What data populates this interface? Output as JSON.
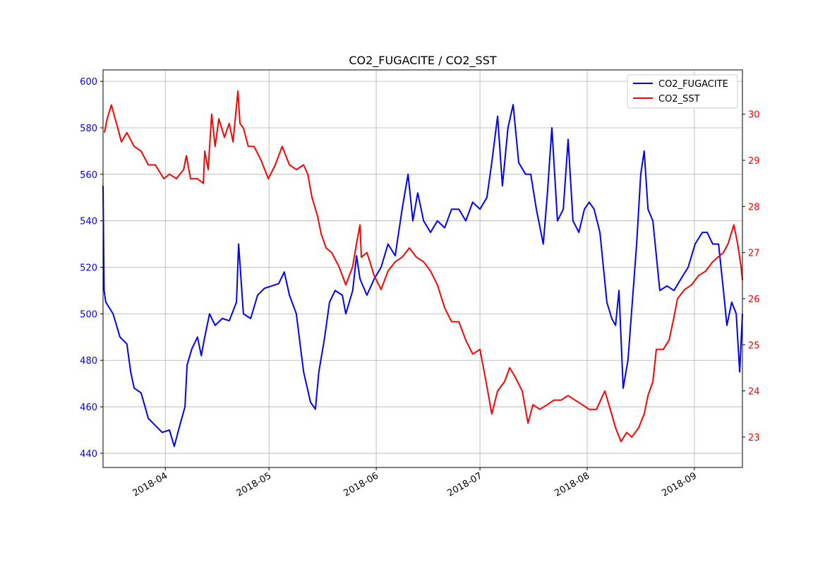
{
  "chart_data": {
    "type": "line",
    "title": "CO2_FUGACITE / CO2_SST",
    "x_origin": "2018-03-14",
    "x_unit": "days since x_origin",
    "xlim_days": [
      0,
      184.9
    ],
    "x_ticks": [
      {
        "label": "2018-04",
        "day": 18
      },
      {
        "label": "2018-05",
        "day": 48
      },
      {
        "label": "2018-06",
        "day": 79
      },
      {
        "label": "2018-07",
        "day": 109
      },
      {
        "label": "2018-08",
        "day": 140
      },
      {
        "label": "2018-09",
        "day": 171
      }
    ],
    "left_axis": {
      "ylim": [
        433.9,
        604.9
      ],
      "ticks": [
        "440",
        "460",
        "480",
        "500",
        "520",
        "540",
        "560",
        "580",
        "600"
      ],
      "color": "#0000ff"
    },
    "right_axis": {
      "ylim": [
        22.34,
        30.96
      ],
      "ticks": [
        "23",
        "24",
        "25",
        "26",
        "27",
        "28",
        "29",
        "30"
      ],
      "color": "#ff0000"
    },
    "grid": true,
    "legend_position": "top-right",
    "series": [
      {
        "name": "CO2_FUGACITE",
        "axis": "left",
        "color": "#0000ff",
        "points": [
          [
            0,
            555
          ],
          [
            0.3,
            510
          ],
          [
            0.8,
            505
          ],
          [
            2.9,
            500
          ],
          [
            4.9,
            490
          ],
          [
            6.9,
            487
          ],
          [
            8.0,
            475
          ],
          [
            9.0,
            468
          ],
          [
            11.0,
            466
          ],
          [
            13.1,
            455
          ],
          [
            15.1,
            452
          ],
          [
            17.1,
            449
          ],
          [
            19.2,
            450
          ],
          [
            20.6,
            443
          ],
          [
            22.2,
            452
          ],
          [
            23.7,
            460
          ],
          [
            24.3,
            478
          ],
          [
            25.7,
            485
          ],
          [
            27.3,
            490
          ],
          [
            28.4,
            482
          ],
          [
            29.4,
            490
          ],
          [
            30.8,
            500
          ],
          [
            32.4,
            495
          ],
          [
            34.5,
            498
          ],
          [
            36.5,
            497
          ],
          [
            38.6,
            505
          ],
          [
            39.2,
            530
          ],
          [
            40.6,
            500
          ],
          [
            42.7,
            498
          ],
          [
            44.7,
            508
          ],
          [
            46.7,
            511
          ],
          [
            48.8,
            512
          ],
          [
            50.8,
            513
          ],
          [
            52.4,
            518
          ],
          [
            53.9,
            508
          ],
          [
            55.9,
            500
          ],
          [
            56.9,
            488
          ],
          [
            58.0,
            475
          ],
          [
            60.0,
            462
          ],
          [
            61.4,
            459
          ],
          [
            62.4,
            475
          ],
          [
            64.1,
            490
          ],
          [
            65.5,
            505
          ],
          [
            67.1,
            510
          ],
          [
            69.2,
            508
          ],
          [
            70.2,
            500
          ],
          [
            72.2,
            510
          ],
          [
            73.3,
            525
          ],
          [
            74.3,
            515
          ],
          [
            76.3,
            508
          ],
          [
            78.4,
            515
          ],
          [
            80.4,
            520
          ],
          [
            82.4,
            530
          ],
          [
            84.5,
            525
          ],
          [
            86.5,
            545
          ],
          [
            88.2,
            560
          ],
          [
            89.6,
            540
          ],
          [
            91.0,
            552
          ],
          [
            92.7,
            540
          ],
          [
            94.7,
            535
          ],
          [
            96.7,
            540
          ],
          [
            98.8,
            537
          ],
          [
            100.8,
            545
          ],
          [
            102.9,
            545
          ],
          [
            104.9,
            540
          ],
          [
            106.9,
            548
          ],
          [
            109.0,
            545
          ],
          [
            111.0,
            550
          ],
          [
            112.4,
            565
          ],
          [
            114.1,
            585
          ],
          [
            115.5,
            555
          ],
          [
            117.1,
            580
          ],
          [
            118.6,
            590
          ],
          [
            120.2,
            565
          ],
          [
            122.2,
            560
          ],
          [
            123.7,
            560
          ],
          [
            125.3,
            545
          ],
          [
            127.3,
            530
          ],
          [
            128.4,
            550
          ],
          [
            129.8,
            580
          ],
          [
            131.4,
            540
          ],
          [
            133.1,
            545
          ],
          [
            134.5,
            575
          ],
          [
            135.9,
            540
          ],
          [
            137.6,
            535
          ],
          [
            139.2,
            545
          ],
          [
            140.6,
            548
          ],
          [
            142.0,
            545
          ],
          [
            143.7,
            535
          ],
          [
            144.7,
            520
          ],
          [
            145.7,
            505
          ],
          [
            147.1,
            498
          ],
          [
            148.2,
            495
          ],
          [
            149.2,
            510
          ],
          [
            150.4,
            468
          ],
          [
            151.8,
            480
          ],
          [
            153.3,
            510
          ],
          [
            154.3,
            530
          ],
          [
            155.5,
            560
          ],
          [
            156.5,
            570
          ],
          [
            157.6,
            545
          ],
          [
            159.0,
            540
          ],
          [
            160.0,
            525
          ],
          [
            161.0,
            510
          ],
          [
            163.1,
            512
          ],
          [
            165.1,
            510
          ],
          [
            167.1,
            515
          ],
          [
            169.2,
            520
          ],
          [
            171.2,
            530
          ],
          [
            173.3,
            535
          ],
          [
            174.7,
            535
          ],
          [
            176.3,
            530
          ],
          [
            178.0,
            530
          ],
          [
            179.4,
            510
          ],
          [
            180.4,
            495
          ],
          [
            181.8,
            505
          ],
          [
            183.1,
            500
          ],
          [
            184.1,
            475
          ],
          [
            184.9,
            500
          ]
        ]
      },
      {
        "name": "CO2_SST",
        "axis": "right",
        "color": "#ff0000",
        "points": [
          [
            0.4,
            29.6
          ],
          [
            1.2,
            29.9
          ],
          [
            2.4,
            30.2
          ],
          [
            3.9,
            29.8
          ],
          [
            5.3,
            29.4
          ],
          [
            6.9,
            29.6
          ],
          [
            9.0,
            29.3
          ],
          [
            11.0,
            29.2
          ],
          [
            13.1,
            28.9
          ],
          [
            15.1,
            28.9
          ],
          [
            17.6,
            28.6
          ],
          [
            19.2,
            28.7
          ],
          [
            21.2,
            28.6
          ],
          [
            23.3,
            28.8
          ],
          [
            24.1,
            29.1
          ],
          [
            25.3,
            28.6
          ],
          [
            27.3,
            28.6
          ],
          [
            29.0,
            28.5
          ],
          [
            29.4,
            29.2
          ],
          [
            30.4,
            28.8
          ],
          [
            31.4,
            30.0
          ],
          [
            32.4,
            29.3
          ],
          [
            33.5,
            29.9
          ],
          [
            35.1,
            29.5
          ],
          [
            36.5,
            29.8
          ],
          [
            37.6,
            29.4
          ],
          [
            39.0,
            30.5
          ],
          [
            39.6,
            29.8
          ],
          [
            40.6,
            29.7
          ],
          [
            42.0,
            29.3
          ],
          [
            43.7,
            29.3
          ],
          [
            45.7,
            29.0
          ],
          [
            47.8,
            28.6
          ],
          [
            49.8,
            28.9
          ],
          [
            51.8,
            29.3
          ],
          [
            53.9,
            28.9
          ],
          [
            55.9,
            28.8
          ],
          [
            58.0,
            28.9
          ],
          [
            59.2,
            28.7
          ],
          [
            60.4,
            28.2
          ],
          [
            62.0,
            27.8
          ],
          [
            63.1,
            27.4
          ],
          [
            64.5,
            27.1
          ],
          [
            66.1,
            27.0
          ],
          [
            68.2,
            26.7
          ],
          [
            70.2,
            26.3
          ],
          [
            72.2,
            26.7
          ],
          [
            73.3,
            27.2
          ],
          [
            74.3,
            27.6
          ],
          [
            74.7,
            26.9
          ],
          [
            76.3,
            27.0
          ],
          [
            78.4,
            26.5
          ],
          [
            80.4,
            26.2
          ],
          [
            82.4,
            26.6
          ],
          [
            84.5,
            26.8
          ],
          [
            86.5,
            26.9
          ],
          [
            88.6,
            27.1
          ],
          [
            90.6,
            26.9
          ],
          [
            92.7,
            26.8
          ],
          [
            94.7,
            26.6
          ],
          [
            96.7,
            26.3
          ],
          [
            98.8,
            25.8
          ],
          [
            100.8,
            25.5
          ],
          [
            102.9,
            25.5
          ],
          [
            104.9,
            25.1
          ],
          [
            106.9,
            24.8
          ],
          [
            109.0,
            24.9
          ],
          [
            111.0,
            24.1
          ],
          [
            112.4,
            23.5
          ],
          [
            114.1,
            24.0
          ],
          [
            116.1,
            24.2
          ],
          [
            117.6,
            24.5
          ],
          [
            119.2,
            24.3
          ],
          [
            121.2,
            24.0
          ],
          [
            122.9,
            23.3
          ],
          [
            124.3,
            23.7
          ],
          [
            126.3,
            23.6
          ],
          [
            128.4,
            23.7
          ],
          [
            130.4,
            23.8
          ],
          [
            132.4,
            23.8
          ],
          [
            134.5,
            23.9
          ],
          [
            136.5,
            23.8
          ],
          [
            138.6,
            23.7
          ],
          [
            140.6,
            23.6
          ],
          [
            142.7,
            23.6
          ],
          [
            145.1,
            24.0
          ],
          [
            146.7,
            23.6
          ],
          [
            148.2,
            23.2
          ],
          [
            149.8,
            22.9
          ],
          [
            151.4,
            23.1
          ],
          [
            152.9,
            23.0
          ],
          [
            154.9,
            23.2
          ],
          [
            156.5,
            23.5
          ],
          [
            157.6,
            23.9
          ],
          [
            159.0,
            24.2
          ],
          [
            160.0,
            24.9
          ],
          [
            162.0,
            24.9
          ],
          [
            163.7,
            25.1
          ],
          [
            165.1,
            25.6
          ],
          [
            166.1,
            26.0
          ],
          [
            168.2,
            26.2
          ],
          [
            170.2,
            26.3
          ],
          [
            172.2,
            26.5
          ],
          [
            174.3,
            26.6
          ],
          [
            176.3,
            26.8
          ],
          [
            177.8,
            26.9
          ],
          [
            179.4,
            27.0
          ],
          [
            180.8,
            27.2
          ],
          [
            182.4,
            27.6
          ],
          [
            183.5,
            27.2
          ],
          [
            184.5,
            26.7
          ],
          [
            184.9,
            26.4
          ]
        ]
      }
    ]
  }
}
